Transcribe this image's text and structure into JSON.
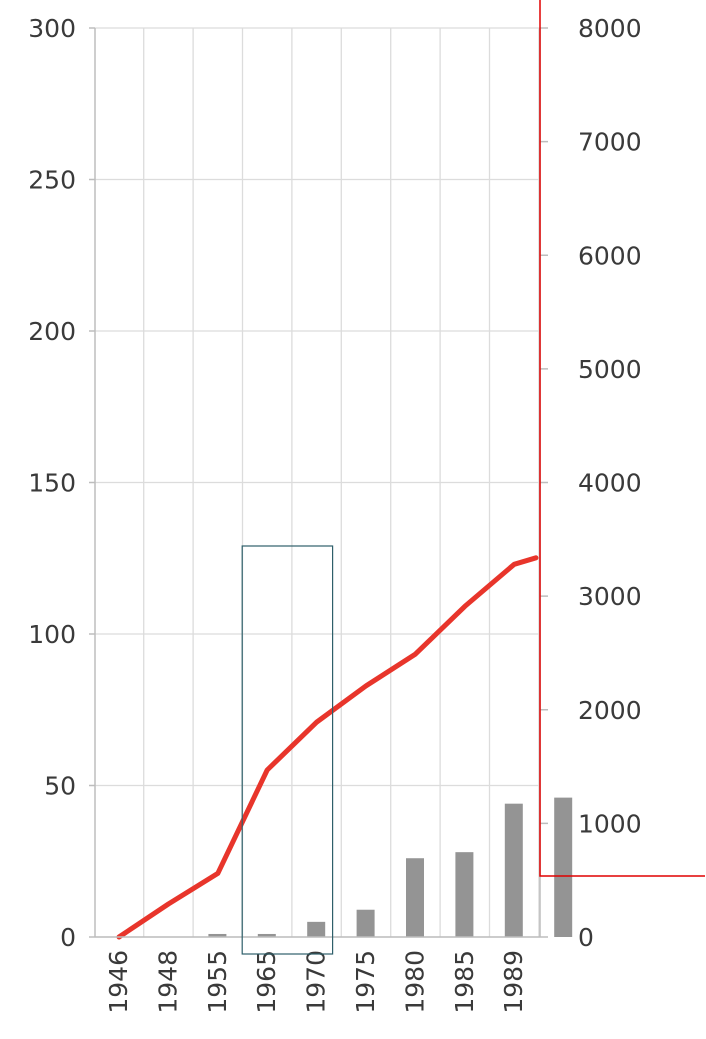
{
  "chart_data": {
    "type": "bar",
    "categories": [
      "1946",
      "1948",
      "1955",
      "1965",
      "1970",
      "1975",
      "1980",
      "1985",
      "1989"
    ],
    "series": [
      {
        "type": "bar",
        "axis": "left",
        "values": [
          0,
          1,
          1,
          5,
          9,
          26,
          28,
          44,
          46
        ]
      },
      {
        "type": "line",
        "axis": "right",
        "values": [
          0,
          290,
          560,
          1470,
          1890,
          2210,
          2490,
          2910,
          3280
        ]
      }
    ],
    "y_left": {
      "ylim": [
        0,
        300
      ],
      "ticks": [
        0,
        50,
        100,
        150,
        200,
        250,
        300
      ]
    },
    "y_right": {
      "ylim": [
        0,
        8000
      ],
      "ticks": [
        0,
        1000,
        2000,
        3000,
        4000,
        5000,
        6000,
        7000,
        8000
      ]
    },
    "grid": true,
    "colors": {
      "bar": "#949494",
      "line": "#e8352b",
      "grid": "#dcdcdc",
      "highlight_box": "#2e5f6a",
      "highlight_frame": "#e00000"
    },
    "highlight_categories": [
      "1965",
      "1970"
    ]
  }
}
